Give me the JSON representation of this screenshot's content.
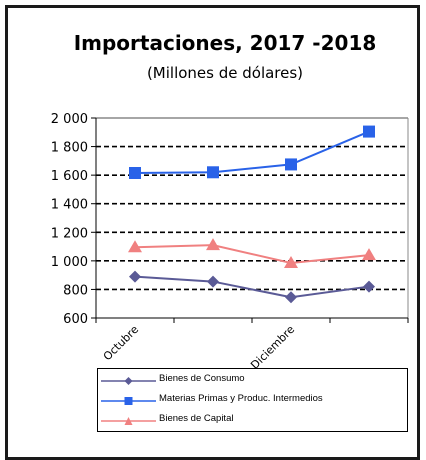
{
  "chart_data": {
    "type": "line",
    "title": "Importaciones, 2017 -2018",
    "subtitle": "(Millones de dólares)",
    "xlabel": "",
    "ylabel": "",
    "ylim": [
      600,
      2000
    ],
    "ytick_step": 200,
    "ytick_labels": [
      "600",
      "800",
      "1 000",
      "1 200",
      "1 400",
      "1 600",
      "1 800",
      "2 000"
    ],
    "x_tick_labels": [
      {
        "label": "Octubre",
        "at": 0
      },
      {
        "label": "Diciembre",
        "at": 2
      }
    ],
    "point_count": 4,
    "grid": true,
    "legend_position": "bottom",
    "series": [
      {
        "name": "Bienes de Consumo",
        "color": "#5a5a96",
        "marker": "diamond",
        "values": [
          890,
          855,
          745,
          820
        ]
      },
      {
        "name": "Materias Primas y Produc. Intermedios",
        "color": "#2962e8",
        "marker": "square",
        "values": [
          1615,
          1620,
          1675,
          1905
        ]
      },
      {
        "name": "Bienes de Capital",
        "color": "#f08080",
        "marker": "triangle",
        "values": [
          1095,
          1110,
          985,
          1040
        ]
      }
    ]
  }
}
